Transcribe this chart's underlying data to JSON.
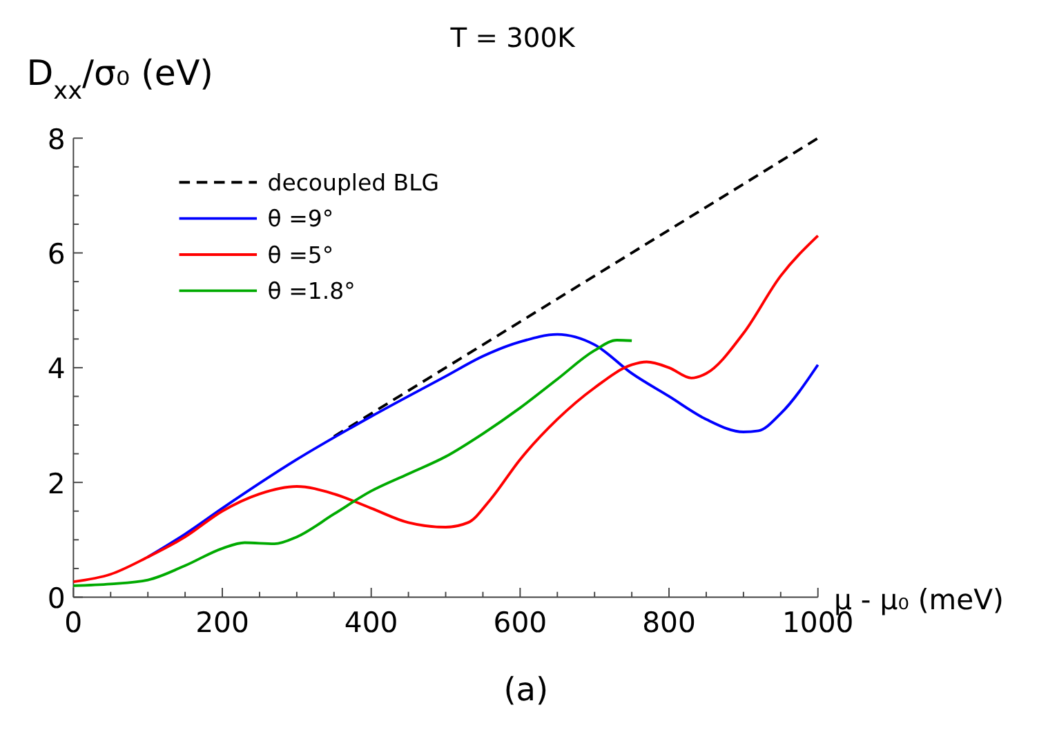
{
  "chart_data": {
    "type": "line",
    "title": "T  = 300K",
    "xlabel": "μ -  μ₀ (meV)",
    "ylabel": "D$_{xx}$/σ₀ (eV)",
    "annotations": [
      "(a)"
    ],
    "legend": "top left",
    "grid": false,
    "xlim": [
      0,
      1000
    ],
    "ylim": [
      0,
      8
    ],
    "xticks": [
      0,
      {
        "value": 50,
        "label": null
      },
      200,
      {
        "value": 100,
        "label": null
      },
      {
        "value": 150,
        "label": null
      },
      {
        "value": 250,
        "label": null
      },
      {
        "value": 300,
        "label": null
      },
      {
        "value": 350,
        "label": null
      },
      400,
      {
        "value": 450,
        "label": null
      },
      {
        "value": 500,
        "label": null
      },
      {
        "value": 550,
        "label": null
      },
      600,
      {
        "value": 650,
        "label": null
      },
      {
        "value": 700,
        "label": null
      },
      {
        "value": 750,
        "label": null
      },
      800,
      {
        "value": 850,
        "label": null
      },
      {
        "value": 900,
        "label": null
      },
      {
        "value": 950,
        "label": null
      },
      1000
    ],
    "yticks": [
      0,
      {
        "value": 0.5,
        "label": null
      },
      {
        "value": 1,
        "label": null
      },
      {
        "value": 1.5,
        "label": null
      },
      2,
      {
        "value": 2.5,
        "label": null
      },
      {
        "value": 3,
        "label": null
      },
      {
        "value": 3.5,
        "label": null
      },
      4,
      {
        "value": 4.5,
        "label": null
      },
      {
        "value": 5,
        "label": null
      },
      {
        "value": 5.5,
        "label": null
      },
      6,
      {
        "value": 6.5,
        "label": null
      },
      {
        "value": 7,
        "label": null
      },
      {
        "value": 7.5,
        "label": null
      },
      8
    ],
    "series": [
      {
        "name": "decoupled BLG",
        "color": "#000000",
        "line_style": "dashed",
        "x": [
          350,
          400,
          500,
          600,
          700,
          800,
          900,
          1000
        ],
        "values": [
          2.8,
          3.2,
          4.0,
          4.8,
          5.6,
          6.4,
          7.2,
          8.0
        ]
      },
      {
        "name": "θ =9°",
        "color": "#0000ff",
        "line_style": "solid",
        "x": [
          100,
          150,
          200,
          300,
          400,
          500,
          550,
          600,
          650,
          700,
          750,
          800,
          850,
          900,
          920,
          950,
          1000
        ],
        "values": [
          0.7,
          1.1,
          1.55,
          2.4,
          3.15,
          3.85,
          4.2,
          4.45,
          4.58,
          4.4,
          3.9,
          3.5,
          3.1,
          2.88,
          2.9,
          3.2,
          4.05
        ]
      },
      {
        "name": "θ =5°",
        "color": "#ff0000",
        "line_style": "solid",
        "x": [
          0,
          50,
          100,
          150,
          200,
          250,
          300,
          350,
          400,
          450,
          500,
          530,
          560,
          600,
          650,
          700,
          750,
          770,
          800,
          830,
          850,
          900,
          950,
          1000
        ],
        "values": [
          0.27,
          0.4,
          0.7,
          1.05,
          1.5,
          1.8,
          1.93,
          1.8,
          1.55,
          1.3,
          1.22,
          1.3,
          1.7,
          2.4,
          3.1,
          3.65,
          4.05,
          4.1,
          4.0,
          3.82,
          3.9,
          4.6,
          5.6,
          6.3
        ]
      },
      {
        "name": "θ =1.8°",
        "color": "#00aa00",
        "line_style": "solid",
        "x": [
          0,
          50,
          100,
          150,
          200,
          230,
          270,
          300,
          350,
          400,
          450,
          500,
          550,
          600,
          650,
          700,
          730,
          750
        ],
        "values": [
          0.2,
          0.23,
          0.3,
          0.55,
          0.85,
          0.95,
          0.93,
          1.05,
          1.45,
          1.85,
          2.15,
          2.45,
          2.85,
          3.3,
          3.8,
          4.3,
          4.48,
          4.47
        ]
      }
    ]
  }
}
